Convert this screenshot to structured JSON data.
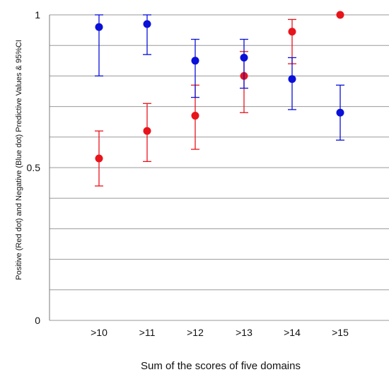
{
  "chart_data": {
    "type": "scatter",
    "categories": [
      ">10",
      ">11",
      ">12",
      ">13",
      ">14",
      ">15"
    ],
    "xlabel": "Sum of the scores of five domains",
    "ylabel": "Positive (Red dot) and Negative (Blue dot) Predictive Values & 95%CI",
    "ylim": [
      0,
      1
    ],
    "y_tick_labels": [
      "0",
      "0.5",
      "1"
    ],
    "y_tick_values": [
      0,
      0.5,
      1
    ],
    "grid": "horizontal lines every 0.1",
    "series": [
      {
        "color": "#e8141b",
        "values": [
          0.53,
          0.62,
          0.67,
          0.8,
          0.945,
          1.0
        ],
        "ci_low": [
          0.44,
          0.52,
          0.56,
          0.68,
          0.84,
          null
        ],
        "ci_high": [
          0.62,
          0.71,
          0.77,
          0.88,
          0.985,
          null
        ]
      },
      {
        "color": "#0a10d8",
        "values": [
          0.96,
          0.97,
          0.85,
          0.86,
          0.79,
          0.68
        ],
        "ci_low": [
          0.8,
          0.87,
          0.73,
          0.76,
          0.69,
          0.59
        ],
        "ci_high": [
          1.0,
          1.0,
          0.92,
          0.92,
          0.86,
          0.77
        ]
      }
    ]
  }
}
